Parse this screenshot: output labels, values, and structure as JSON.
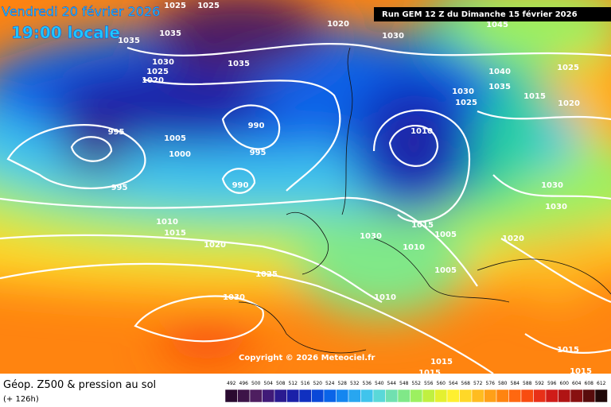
{
  "header": {
    "date": "Vendredi 20 février 2026",
    "time": "19:00 locale",
    "run": "Run GEM 12 Z du Dimanche 15 février 2026"
  },
  "copyright": "Copyright © 2026 Meteociel.fr",
  "footer": {
    "title": "Géop. Z500 & pression au sol",
    "lead": "(+ 126h)"
  },
  "map": {
    "isobar_labels": [
      "1025",
      "1025",
      "1035",
      "1035",
      "1020",
      "1030",
      "1045",
      "1030",
      "1025",
      "1020",
      "1035",
      "1040",
      "1035",
      "1025",
      "1030",
      "1025",
      "1015",
      "1020",
      "1010",
      "990",
      "995",
      "1005",
      "1000",
      "995",
      "990",
      "995",
      "1030",
      "1030",
      "1010",
      "1015",
      "1030",
      "1015",
      "1005",
      "1020",
      "1020",
      "1010",
      "1025",
      "1005",
      "1010",
      "1030",
      "1015",
      "1015",
      "1015",
      "1015"
    ]
  },
  "scale": {
    "labels": [
      492,
      496,
      500,
      504,
      508,
      512,
      516,
      520,
      524,
      528,
      532,
      536,
      540,
      544,
      548,
      552,
      556,
      560,
      564,
      568,
      572,
      576,
      580,
      584,
      588,
      592,
      596,
      600,
      604,
      608,
      612
    ],
    "colors": [
      "#2a0a30",
      "#3d1448",
      "#4e1e60",
      "#401a78",
      "#2a1a90",
      "#1a20a8",
      "#1030c0",
      "#0a48d8",
      "#0a64e8",
      "#1486f0",
      "#28a6f0",
      "#40c4ec",
      "#5ad8d8",
      "#70e0b0",
      "#80e888",
      "#9cf060",
      "#c0f040",
      "#e4f030",
      "#fff030",
      "#ffd828",
      "#ffbc20",
      "#ffa018",
      "#ff8410",
      "#ff6810",
      "#f84c10",
      "#e83018",
      "#d01c18",
      "#b01414",
      "#881010",
      "#580c0c",
      "#200808"
    ]
  }
}
